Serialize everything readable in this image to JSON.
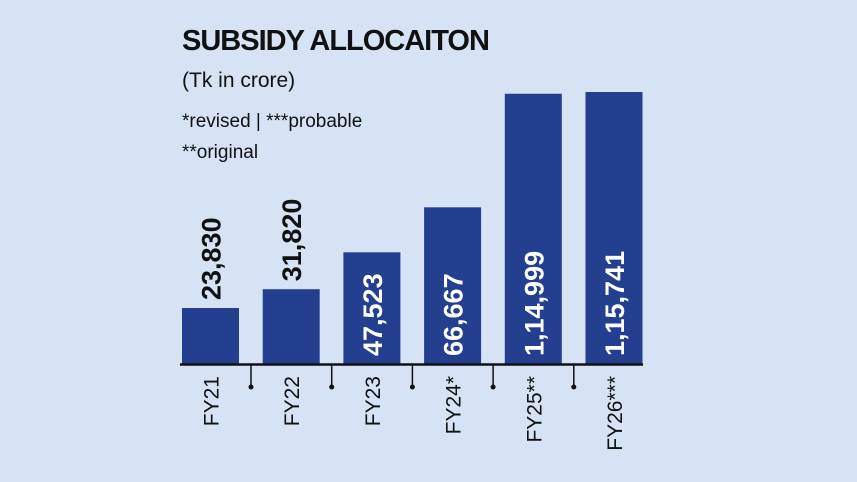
{
  "chart_data": {
    "type": "bar",
    "title": "SUBSIDY ALLOCAITON",
    "subtitle": "(Tk in crore)",
    "notes": [
      "*revised | ***probable",
      "**original"
    ],
    "categories": [
      "FY21",
      "FY22",
      "FY23",
      "FY24*",
      "FY25**",
      "FY26***"
    ],
    "values": [
      23830,
      31820,
      47523,
      66667,
      114999,
      115741
    ],
    "value_labels": [
      "23,830",
      "31,820",
      "47,523",
      "66,667",
      "1,14,999",
      "1,15,741"
    ],
    "xlabel": "",
    "ylabel": "",
    "ylim": [
      0,
      115741
    ],
    "grid": false,
    "colors": {
      "bar": "#243f8f",
      "background": "#d5e3f4",
      "label_inside": "#ffffff",
      "label_outside": "#111111"
    }
  }
}
